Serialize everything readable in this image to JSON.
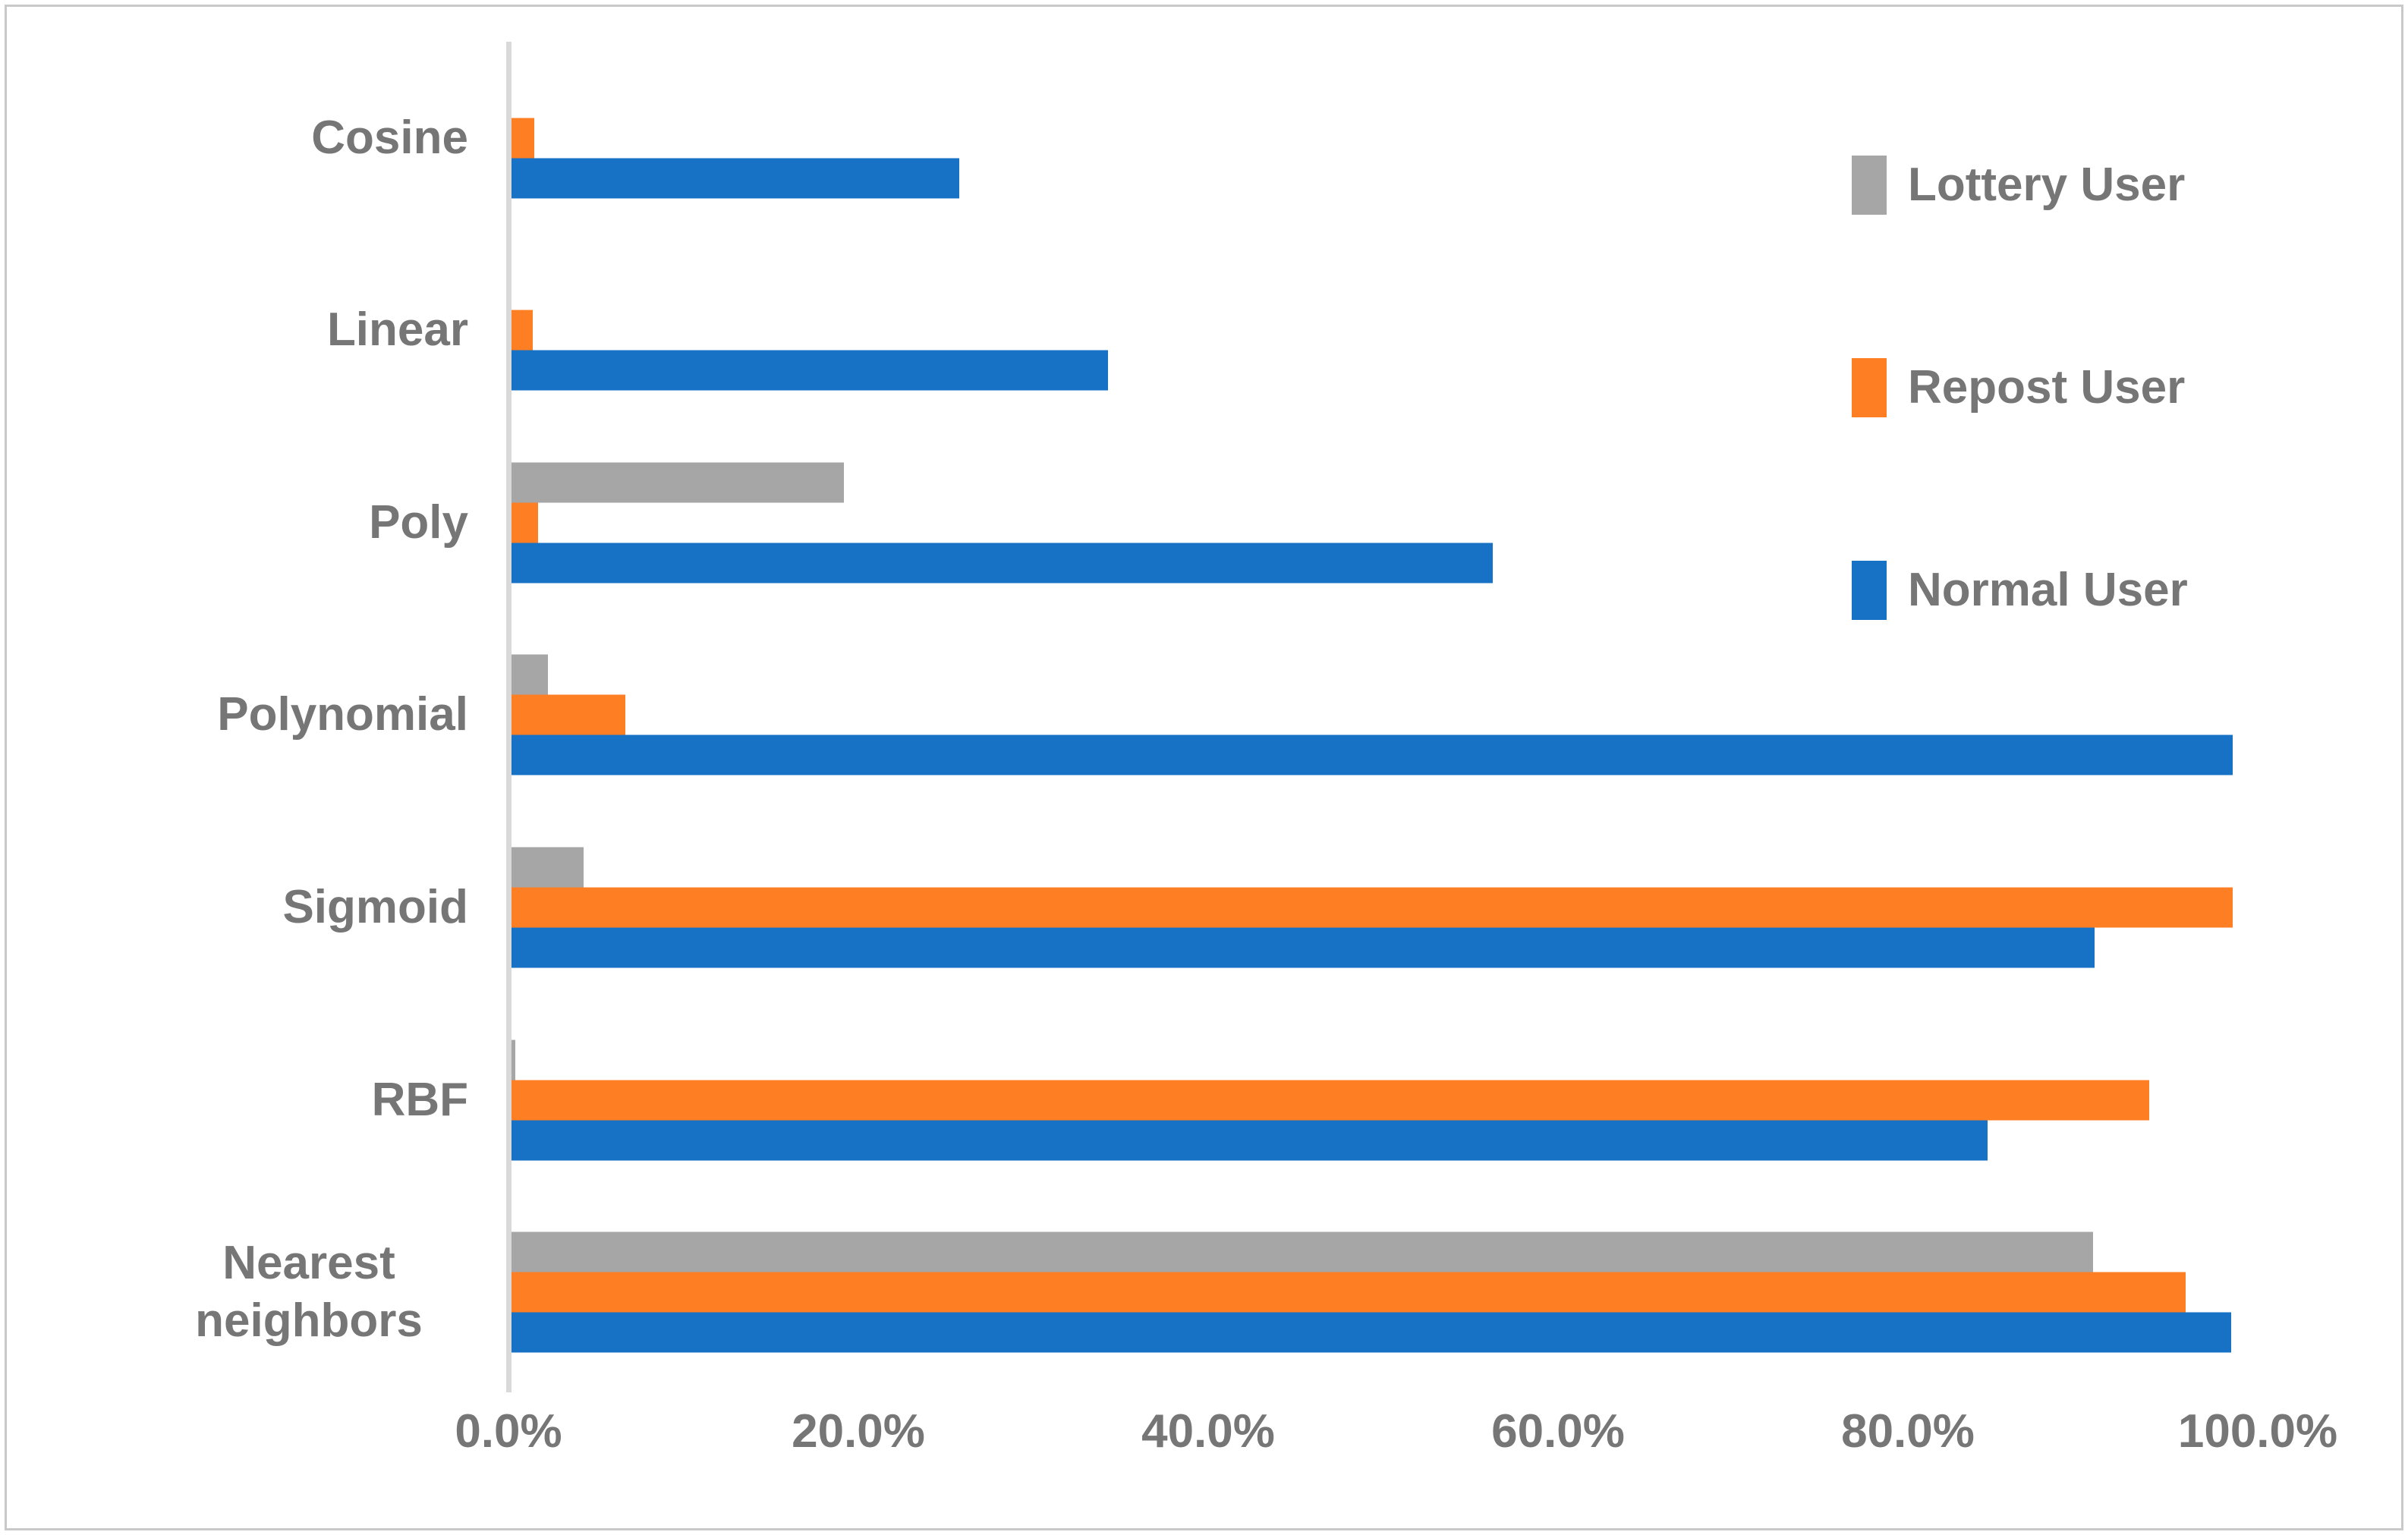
{
  "figure": {
    "background": "#FFFFFF",
    "border_color": "#C9C9C9",
    "text_color": "#767676",
    "axis_line_color": "#D9D9D9"
  },
  "chart_data": {
    "type": "bar",
    "orientation": "horizontal",
    "title": "",
    "xlabel": "",
    "ylabel": "",
    "categories": [
      "Cosine",
      "Linear",
      "Poly",
      "Polynomial",
      "Sigmoid",
      "RBF",
      "Nearest neighbors"
    ],
    "series": [
      {
        "name": "Lottery User",
        "color": "#A6A6A6",
        "values": [
          0,
          0,
          19.0,
          2.1,
          4.1,
          0.2,
          90.4
        ]
      },
      {
        "name": "Repost User",
        "color": "#FD7E23",
        "values": [
          1.3,
          1.2,
          1.5,
          6.5,
          98.4,
          93.6,
          95.7
        ]
      },
      {
        "name": "Normal User",
        "color": "#1772C6",
        "values": [
          25.6,
          34.1,
          56.1,
          98.4,
          90.5,
          84.4,
          98.3
        ]
      }
    ],
    "bar_group_order_top_to_bottom": [
      "Lottery User",
      "Repost User",
      "Normal User"
    ],
    "x_axis": {
      "min": 0,
      "max": 100,
      "tick_values": [
        0,
        20,
        40,
        60,
        80,
        100
      ],
      "tick_labels": [
        "0.0%",
        "20.0%",
        "40.0%",
        "60.0%",
        "80.0%",
        "100.0%"
      ]
    },
    "grid": "off",
    "legend": {
      "position": "top-right",
      "entries": [
        "Lottery User",
        "Repost User",
        "Normal User"
      ]
    }
  }
}
